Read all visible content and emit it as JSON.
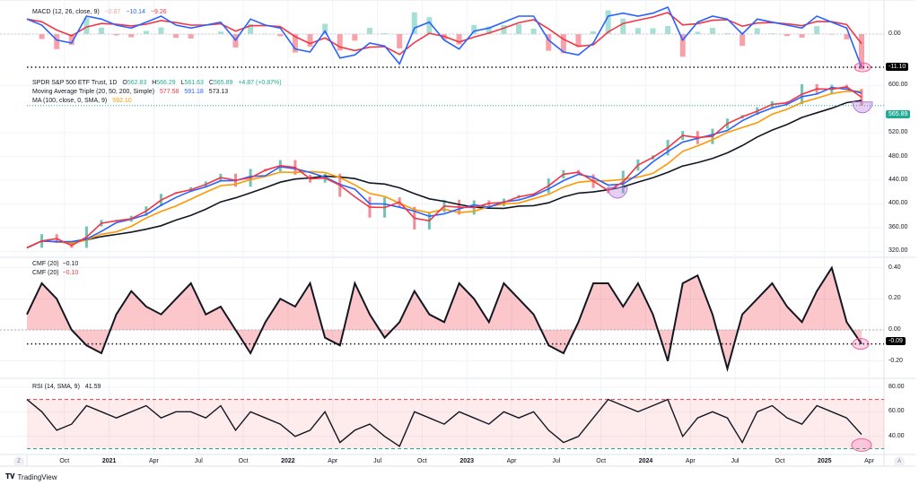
{
  "colors": {
    "red": "#f23645",
    "blue": "#2962ff",
    "orange": "#ff9800",
    "black": "#131722",
    "teal": "#22ab94",
    "fill_red": "#f7b6b6"
  },
  "macd_legend": {
    "name": "MACD (12, 26, close, 9)",
    "hist": "−0.87",
    "macd": "−10.14",
    "signal": "−9.26"
  },
  "price_legend": {
    "symbol": "SPDR S&P 500 ETF Trust, 1D",
    "o_label": "O",
    "o": "562.83",
    "h_label": "H",
    "h": "566.29",
    "l_label": "L",
    "l": "561.63",
    "c_label": "C",
    "c": "565.89",
    "change": "+4.87 (+0.87%)",
    "mat_name": "Moving Average Triple (20, 50, 200, Simple)",
    "mat_1": "577.58",
    "mat_2": "591.18",
    "mat_3": "573.13",
    "ma_name": "MA (100, close, 0, SMA, 9)",
    "ma_value": "592.10"
  },
  "cmf_legend": {
    "name1": "CMF (20)",
    "value1": "−0.10",
    "name2": "CMF (20)",
    "value2": "−0.10"
  },
  "rsi_legend": {
    "name": "RSI (14, SMA, 9)",
    "value": "41.59"
  },
  "badges": {
    "macd": "-11.10",
    "price": "565.89",
    "cmf": "-0.09"
  },
  "bottom": {
    "zoom_btn": "Z",
    "auto_btn": "A",
    "logo": "TradingView",
    "logo_mark": "TV"
  },
  "chart_data": [
    {
      "type": "line",
      "pane": "price",
      "x_start": "Jul 2020",
      "x_end": "Mar 2025",
      "sampling": "monthly",
      "ylim": [
        310,
        620
      ],
      "yticks": [
        "600.00",
        "520.00",
        "480.00",
        "440.00",
        "400.00",
        "360.00",
        "320.00"
      ],
      "ytick_values": [
        600,
        520,
        480,
        440,
        400,
        360,
        320
      ],
      "close": [
        326,
        349,
        334,
        326,
        362,
        373,
        370,
        380,
        396,
        417,
        420,
        428,
        438,
        451,
        429,
        459,
        455,
        474,
        449,
        436,
        451,
        412,
        412,
        377,
        411,
        395,
        357,
        386,
        407,
        382,
        406,
        396,
        409,
        415,
        418,
        443,
        457,
        450,
        427,
        418,
        456,
        475,
        482,
        508,
        523,
        501,
        527,
        544,
        550,
        563,
        573,
        568,
        602,
        586,
        601,
        594,
        566
      ],
      "ma_colors": [
        "#f23645",
        "#2962ff",
        "#131722",
        "#ff9800"
      ]
    },
    {
      "type": "line",
      "pane": "macd",
      "ylim": [
        -12,
        10.5
      ],
      "yticks": [
        "0.00"
      ],
      "ytick_values": [
        0
      ],
      "macd": [
        5,
        3,
        -2,
        -3,
        6,
        5,
        3,
        2,
        4,
        6,
        3,
        2,
        3,
        4,
        -2,
        5,
        3,
        2,
        -5,
        -6,
        1,
        -8,
        -7,
        -3,
        -4,
        -10,
        2,
        4,
        -2,
        -5,
        1,
        2,
        4,
        6,
        6,
        -2,
        -6,
        -7,
        -3,
        6,
        7,
        6,
        7,
        9,
        -2,
        4,
        6,
        5,
        0,
        5,
        4,
        3,
        2,
        6,
        4,
        2,
        -11.1
      ]
    },
    {
      "type": "area",
      "pane": "cmf",
      "ylim": [
        -0.3,
        0.45
      ],
      "yticks": [
        "0.40",
        "0.20",
        "0.00",
        "-0.20"
      ],
      "ytick_values": [
        0.4,
        0.2,
        0,
        -0.2
      ],
      "values": [
        0.1,
        0.3,
        0.2,
        0,
        -0.1,
        -0.15,
        0.1,
        0.25,
        0.15,
        0.1,
        0.2,
        0.3,
        0.1,
        0.15,
        0,
        -0.15,
        0.05,
        0.2,
        0.15,
        0.3,
        -0.05,
        -0.1,
        0.3,
        0.1,
        -0.05,
        0.05,
        0.25,
        0.1,
        0.05,
        0.3,
        0.2,
        0.05,
        0.3,
        0.2,
        0.1,
        -0.1,
        -0.15,
        0.05,
        0.3,
        0.3,
        0.15,
        0.3,
        0.1,
        -0.2,
        0.3,
        0.35,
        0.1,
        -0.25,
        0.1,
        0.2,
        0.3,
        0.15,
        0.05,
        0.25,
        0.4,
        0.05,
        -0.09
      ]
    },
    {
      "type": "line",
      "pane": "rsi",
      "ylim": [
        26,
        85
      ],
      "yticks": [
        "80.00",
        "60.00",
        "40.00"
      ],
      "ytick_values": [
        80,
        60,
        40
      ],
      "bands": [
        70,
        30
      ],
      "values": [
        70,
        60,
        45,
        50,
        65,
        60,
        55,
        60,
        65,
        55,
        60,
        60,
        55,
        65,
        45,
        60,
        55,
        50,
        40,
        45,
        60,
        35,
        45,
        50,
        40,
        32,
        60,
        55,
        50,
        60,
        55,
        50,
        60,
        55,
        60,
        45,
        35,
        40,
        55,
        70,
        65,
        60,
        65,
        70,
        40,
        55,
        60,
        55,
        35,
        60,
        65,
        55,
        50,
        65,
        60,
        55,
        41.59
      ]
    },
    {
      "type": "time_axis",
      "labels": [
        "Oct",
        "2021",
        "Apr",
        "Jul",
        "Oct",
        "2022",
        "Apr",
        "Jul",
        "Oct",
        "2023",
        "Apr",
        "Jul",
        "Oct",
        "2024",
        "Apr",
        "Jul",
        "Oct",
        "2025",
        "Apr"
      ],
      "months_from_start": [
        3,
        6,
        9,
        12,
        15,
        18,
        21,
        24,
        27,
        30,
        33,
        36,
        39,
        42,
        45,
        48,
        51,
        54,
        57
      ]
    }
  ]
}
